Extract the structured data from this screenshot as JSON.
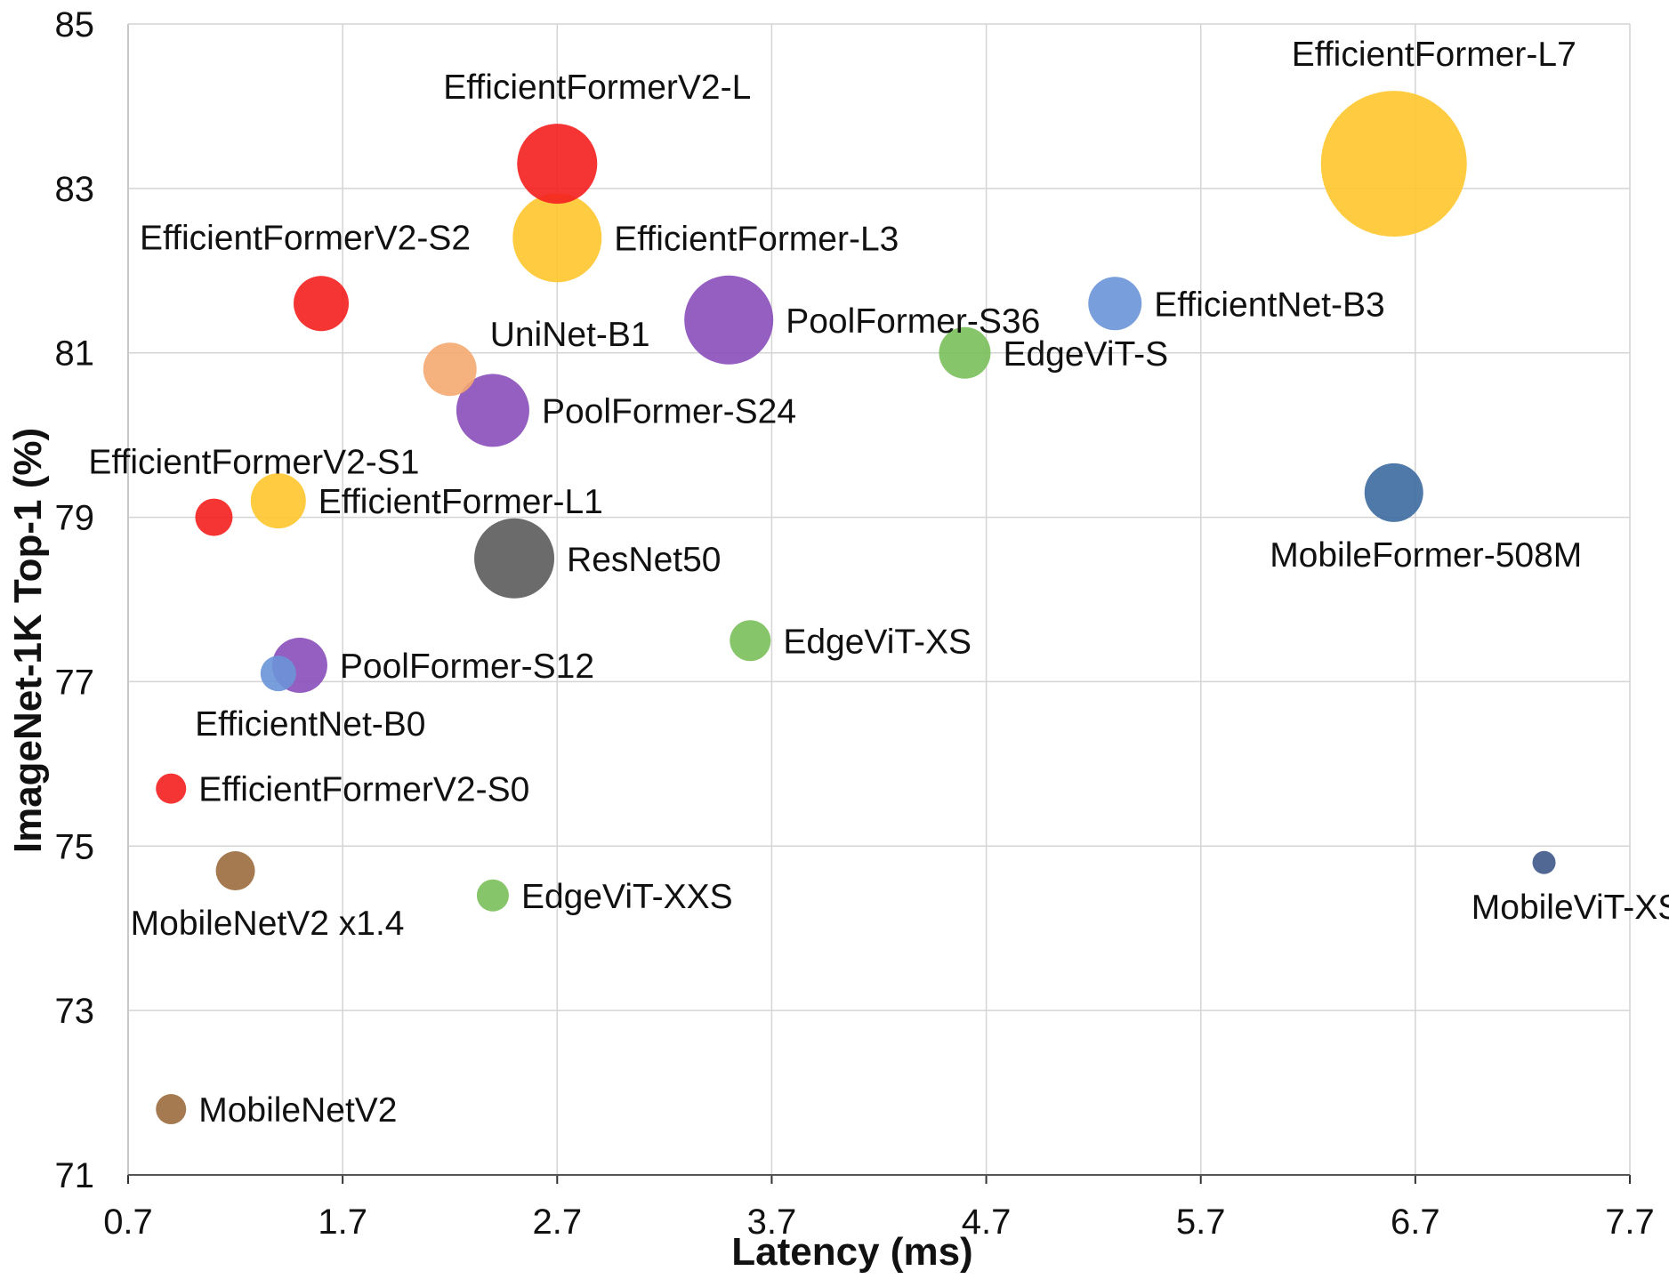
{
  "chart_data": {
    "type": "bubble",
    "xlabel": "Latency (ms)",
    "ylabel": "ImageNet-1K Top-1 (%)",
    "xlim": [
      0.7,
      7.7
    ],
    "ylim": [
      71,
      85
    ],
    "xticks": [
      "0.7",
      "1.7",
      "2.7",
      "3.7",
      "4.7",
      "5.7",
      "6.7",
      "7.7"
    ],
    "yticks": [
      "71",
      "73",
      "75",
      "77",
      "79",
      "81",
      "83",
      "85"
    ],
    "grid": true,
    "legend": "none",
    "points": [
      {
        "name": "EfficientFormer-L7",
        "x": 6.6,
        "y": 83.3,
        "size": 82,
        "color": "#FFC72C",
        "label_pos": "above"
      },
      {
        "name": "EfficientFormerV2-L",
        "x": 2.7,
        "y": 83.3,
        "size": 45,
        "color": "#F41E1E",
        "label_pos": "above"
      },
      {
        "name": "EfficientFormer-L3",
        "x": 2.7,
        "y": 82.4,
        "size": 50,
        "color": "#FFC72C",
        "label_pos": "right"
      },
      {
        "name": "EfficientFormerV2-S2",
        "x": 1.6,
        "y": 81.6,
        "size": 31,
        "color": "#F41E1E",
        "label_pos": "above-left"
      },
      {
        "name": "PoolFormer-S36",
        "x": 3.5,
        "y": 81.4,
        "size": 50,
        "color": "#8A4DBA",
        "label_pos": "right"
      },
      {
        "name": "EfficientNet-B3",
        "x": 5.3,
        "y": 81.6,
        "size": 30,
        "color": "#6A93D8",
        "label_pos": "right"
      },
      {
        "name": "EdgeViT-S",
        "x": 4.6,
        "y": 81.0,
        "size": 29,
        "color": "#79BF5A",
        "label_pos": "right"
      },
      {
        "name": "UniNet-B1",
        "x": 2.2,
        "y": 80.8,
        "size": 30,
        "color": "#F4A870",
        "label_pos": "above-right"
      },
      {
        "name": "PoolFormer-S24",
        "x": 2.4,
        "y": 80.3,
        "size": 41,
        "color": "#8A4DBA",
        "label_pos": "right"
      },
      {
        "name": "EfficientFormerV2-S1",
        "x": 1.1,
        "y": 79.0,
        "size": 21,
        "color": "#F41E1E",
        "label_pos": "above"
      },
      {
        "name": "EfficientFormer-L1",
        "x": 1.4,
        "y": 79.2,
        "size": 31,
        "color": "#FFC72C",
        "label_pos": "right"
      },
      {
        "name": "ResNet50",
        "x": 2.5,
        "y": 78.5,
        "size": 45,
        "color": "#5B5B5B",
        "label_pos": "right"
      },
      {
        "name": "MobileFormer-508M",
        "x": 6.6,
        "y": 79.3,
        "size": 33,
        "color": "#3C6A9E",
        "label_pos": "below"
      },
      {
        "name": "EdgeViT-XS",
        "x": 3.6,
        "y": 77.5,
        "size": 23,
        "color": "#79BF5A",
        "label_pos": "right"
      },
      {
        "name": "PoolFormer-S12",
        "x": 1.5,
        "y": 77.2,
        "size": 31,
        "color": "#8A4DBA",
        "label_pos": "right"
      },
      {
        "name": "EfficientNet-B0",
        "x": 1.4,
        "y": 77.1,
        "size": 20,
        "color": "#6A93D8",
        "label_pos": "below"
      },
      {
        "name": "EfficientFormerV2-S0",
        "x": 0.9,
        "y": 75.7,
        "size": 17,
        "color": "#F41E1E",
        "label_pos": "right"
      },
      {
        "name": "MobileNetV2 x1.4",
        "x": 1.2,
        "y": 74.7,
        "size": 22,
        "color": "#9B6B3E",
        "label_pos": "below"
      },
      {
        "name": "EdgeViT-XXS",
        "x": 2.4,
        "y": 74.4,
        "size": 18,
        "color": "#79BF5A",
        "label_pos": "right"
      },
      {
        "name": "MobileViT-XS",
        "x": 7.3,
        "y": 74.8,
        "size": 13,
        "color": "#3E5688",
        "label_pos": "below"
      },
      {
        "name": "MobileNetV2",
        "x": 0.9,
        "y": 71.8,
        "size": 17,
        "color": "#9B6B3E",
        "label_pos": "right"
      }
    ]
  }
}
